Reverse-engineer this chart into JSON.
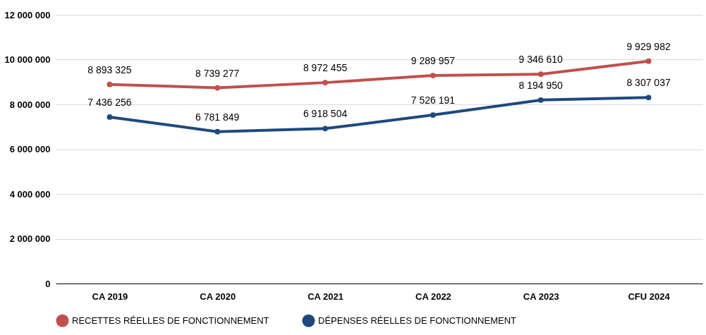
{
  "chart_data": {
    "type": "line",
    "categories": [
      "CA 2019",
      "CA 2020",
      "CA 2021",
      "CA 2022",
      "CA 2023",
      "CFU 2024"
    ],
    "series": [
      {
        "name": "RECETTES RÉELLES DE FONCTIONNEMENT",
        "color": "#c0504d",
        "values": [
          8893325,
          8739277,
          8972455,
          9289957,
          9346610,
          9929982
        ],
        "value_labels": [
          "8 893 325",
          "8 739 277",
          "8 972 455",
          "9 289 957",
          "9 346 610",
          "9 929 982"
        ]
      },
      {
        "name": "DÉPENSES RÉELLES DE FONCTIONNEMENT",
        "color": "#1f497d",
        "values": [
          7436256,
          6781849,
          6918504,
          7526191,
          8194950,
          8307037
        ],
        "value_labels": [
          "7 436 256",
          "6 781 849",
          "6 918 504",
          "7 526 191",
          "8 194 950",
          "8 307 037"
        ]
      }
    ],
    "ylim": [
      0,
      12000000
    ],
    "yticks": [
      {
        "value": 0,
        "label": "0"
      },
      {
        "value": 2000000,
        "label": "2 000 000"
      },
      {
        "value": 4000000,
        "label": "4 000 000"
      },
      {
        "value": 6000000,
        "label": "6 000 000"
      },
      {
        "value": 8000000,
        "label": "8 000 000"
      },
      {
        "value": 10000000,
        "label": "10 000 000"
      },
      {
        "value": 12000000,
        "label": "12 000 000"
      }
    ],
    "grid": "y",
    "legend": "bottom",
    "marker": "circle",
    "line_style": "solid"
  }
}
